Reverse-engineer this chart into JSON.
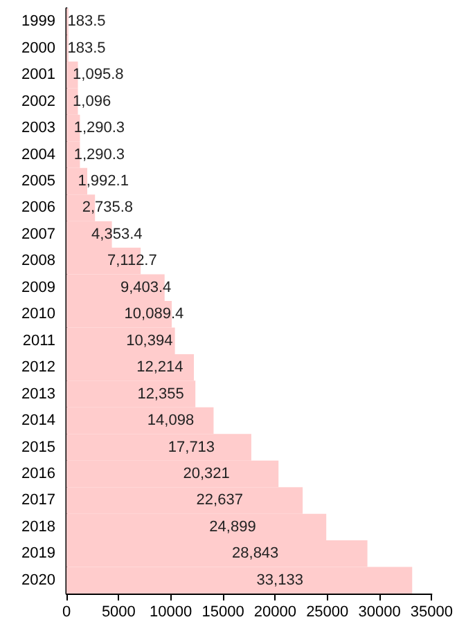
{
  "chart_data": {
    "type": "bar",
    "orientation": "horizontal",
    "categories": [
      "1999",
      "2000",
      "2001",
      "2002",
      "2003",
      "2004",
      "2005",
      "2006",
      "2007",
      "2008",
      "2009",
      "2010",
      "2011",
      "2012",
      "2013",
      "2014",
      "2015",
      "2016",
      "2017",
      "2018",
      "2019",
      "2020"
    ],
    "values": [
      183.5,
      183.5,
      1095.8,
      1096,
      1290.3,
      1290.3,
      1992.1,
      2735.8,
      4353.4,
      7112.7,
      9403.4,
      10089.4,
      10394,
      12214,
      12355,
      14098,
      17713,
      20321,
      22637,
      24899,
      28843,
      33133
    ],
    "value_labels": [
      "183.5",
      "183.5",
      "1,095.8",
      "1,096",
      "1,290.3",
      "1,290.3",
      "1,992.1",
      "2,735.8",
      "4,353.4",
      "7,112.7",
      "9,403.4",
      "10,089.4",
      "10,394",
      "12,214",
      "12,355",
      "14,098",
      "17,713",
      "20,321",
      "22,637",
      "24,899",
      "28,843",
      "33,133"
    ],
    "color": "#ffcccc",
    "xlim": [
      0,
      35000
    ],
    "xticks": [
      0,
      5000,
      10000,
      15000,
      20000,
      25000,
      30000,
      35000
    ],
    "grid": false
  }
}
